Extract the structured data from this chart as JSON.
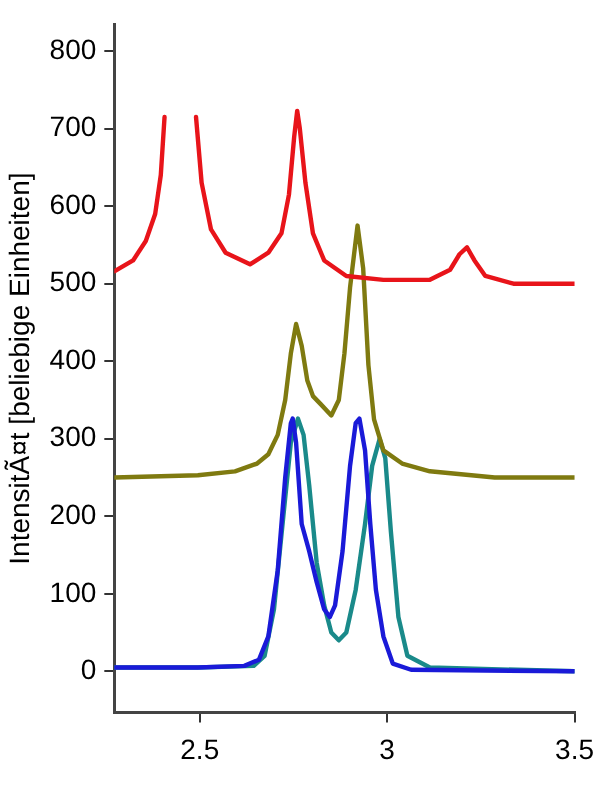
{
  "chart_data": {
    "type": "line",
    "ylabel": "IntensitÃ¤t [beliebige Einheiten]",
    "xlim": [
      2.272,
      3.5
    ],
    "xticks": [
      2.5,
      3,
      3.5
    ],
    "ylim": [
      -53,
      834
    ],
    "yticks": [
      0,
      100,
      200,
      300,
      400,
      500,
      600,
      700,
      800
    ],
    "marker": "none",
    "line_style": "solid",
    "legend": false,
    "series": [
      {
        "color": "#e8141a",
        "x": [
          2.272,
          2.322,
          2.356,
          2.381,
          2.396,
          2.406,
          2.416,
          2.448,
          2.48,
          2.49,
          2.505,
          2.53,
          2.569,
          2.634,
          2.683,
          2.718,
          2.738,
          2.752,
          2.76,
          2.767,
          2.782,
          2.802,
          2.832,
          2.891,
          2.99,
          3.114,
          3.168,
          3.193,
          3.213,
          3.233,
          3.262,
          3.337,
          3.5
        ],
        "values": [
          516,
          530,
          555,
          590,
          640,
          715,
          null,
          null,
          null,
          715,
          630,
          570,
          540,
          525,
          540,
          565,
          615,
          690,
          723,
          700,
          630,
          565,
          530,
          510,
          505,
          505,
          518,
          538,
          547,
          530,
          510,
          500,
          500
        ]
      },
      {
        "color": "#7f7a10",
        "x": [
          2.272,
          2.495,
          2.594,
          2.653,
          2.683,
          2.708,
          2.728,
          2.743,
          2.757,
          2.772,
          2.787,
          2.802,
          2.822,
          2.851,
          2.871,
          2.886,
          2.901,
          2.921,
          2.936,
          2.95,
          2.965,
          2.99,
          3.04,
          3.114,
          3.287,
          3.5
        ],
        "values": [
          250,
          253,
          258,
          268,
          280,
          305,
          350,
          410,
          448,
          420,
          375,
          355,
          345,
          330,
          350,
          410,
          495,
          575,
          520,
          395,
          325,
          285,
          268,
          258,
          250,
          250
        ]
      },
      {
        "color": "#1a1ad8",
        "x": [
          2.272,
          2.495,
          2.619,
          2.658,
          2.683,
          2.708,
          2.728,
          2.743,
          2.748,
          2.757,
          2.772,
          2.792,
          2.812,
          2.832,
          2.847,
          2.861,
          2.881,
          2.901,
          2.916,
          2.926,
          2.941,
          2.955,
          2.97,
          2.99,
          3.015,
          3.064,
          3.5
        ],
        "values": [
          5,
          5,
          7,
          15,
          45,
          130,
          250,
          320,
          326,
          295,
          190,
          155,
          115,
          80,
          70,
          85,
          155,
          265,
          320,
          326,
          285,
          190,
          105,
          45,
          10,
          2,
          0
        ]
      },
      {
        "color": "#1a8a8a",
        "x": [
          2.272,
          2.495,
          2.644,
          2.673,
          2.698,
          2.723,
          2.743,
          2.762,
          2.777,
          2.792,
          2.812,
          2.832,
          2.851,
          2.871,
          2.891,
          2.916,
          2.941,
          2.96,
          2.98,
          2.995,
          3.01,
          3.03,
          3.054,
          3.114,
          3.5
        ],
        "values": [
          5,
          5,
          7,
          20,
          80,
          200,
          295,
          326,
          305,
          240,
          140,
          85,
          50,
          40,
          50,
          105,
          190,
          265,
          300,
          275,
          180,
          70,
          20,
          5,
          0
        ]
      }
    ]
  }
}
